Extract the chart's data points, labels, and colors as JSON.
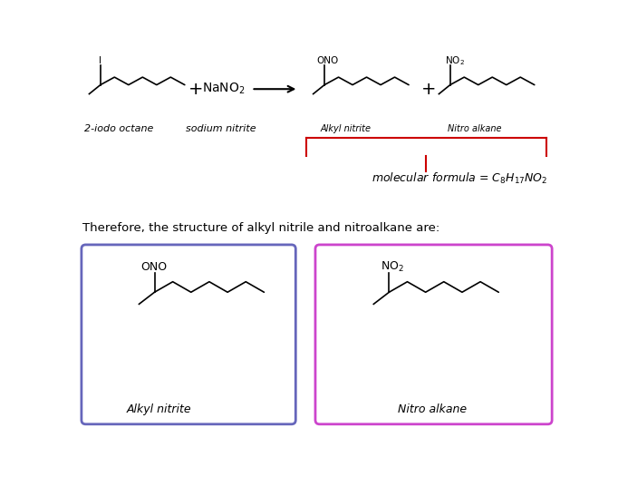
{
  "background_color": "#ffffff",
  "label_2iodo": "2-iodo octane",
  "label_sodium": "sodium nitrite",
  "label_alkyl_top": "Alkyl nitrite",
  "label_nitro_top": "Nitro alkane",
  "title_text": "Therefore, the structure of alkyl nitrile and nitroalkane are:",
  "mol_formula": "molecular formula = C$_8$H$_{17}$NO$_2$",
  "label_alkyl_box": "Alkyl nitrite",
  "label_nitro_box": "Nitro alkane",
  "box1_color": "#6666bb",
  "box2_color": "#cc44cc",
  "red_color": "#cc0000"
}
